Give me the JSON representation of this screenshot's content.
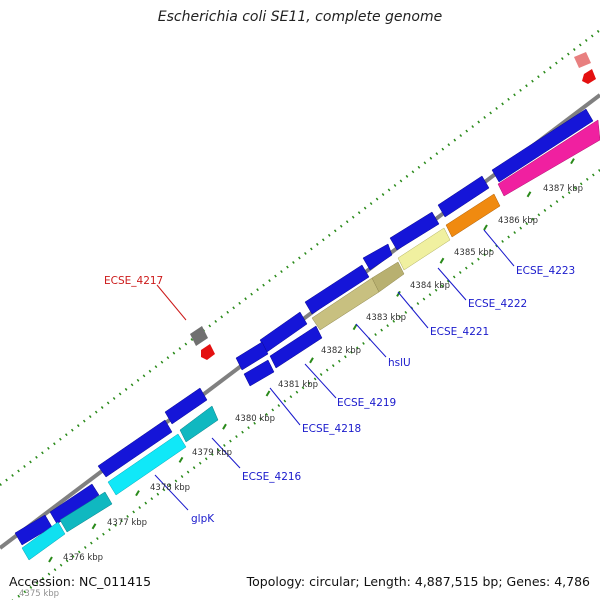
{
  "title": "Escherichia coli SE11, complete genome",
  "footer": {
    "accession": "Accession: NC_011415",
    "summary": "Topology: circular; Length: 4,887,515 bp; Genes: 4,786"
  },
  "ticks": [
    "4376 kbp",
    "4377 kbp",
    "4378 kbp",
    "4379 kbp",
    "4380 kbp",
    "4381 kbp",
    "4382 kbp",
    "4383 kbp",
    "4384 kbp",
    "4385 kbp",
    "4386 kbp",
    "4387 kbp"
  ],
  "partial_tick": "4375 kbp",
  "gene_labels": [
    {
      "text": "glpK",
      "color": "#1a1acc"
    },
    {
      "text": "ECSE_4216",
      "color": "#1a1acc"
    },
    {
      "text": "ECSE_4218",
      "color": "#1a1acc"
    },
    {
      "text": "ECSE_4219",
      "color": "#1a1acc"
    },
    {
      "text": "hslU",
      "color": "#1a1acc"
    },
    {
      "text": "ECSE_4221",
      "color": "#1a1acc"
    },
    {
      "text": "ECSE_4222",
      "color": "#1a1acc"
    },
    {
      "text": "ECSE_4223",
      "color": "#1a1acc"
    },
    {
      "text": "ECSE_4217",
      "color": "#cc1a1a"
    }
  ],
  "colors": {
    "backbone": "#808080",
    "cds": "#1515d8",
    "trna_like": "#707070",
    "gc_dots": "#2a8a1a",
    "label_blue": "#1a1acc",
    "label_red": "#cc1a1a"
  }
}
